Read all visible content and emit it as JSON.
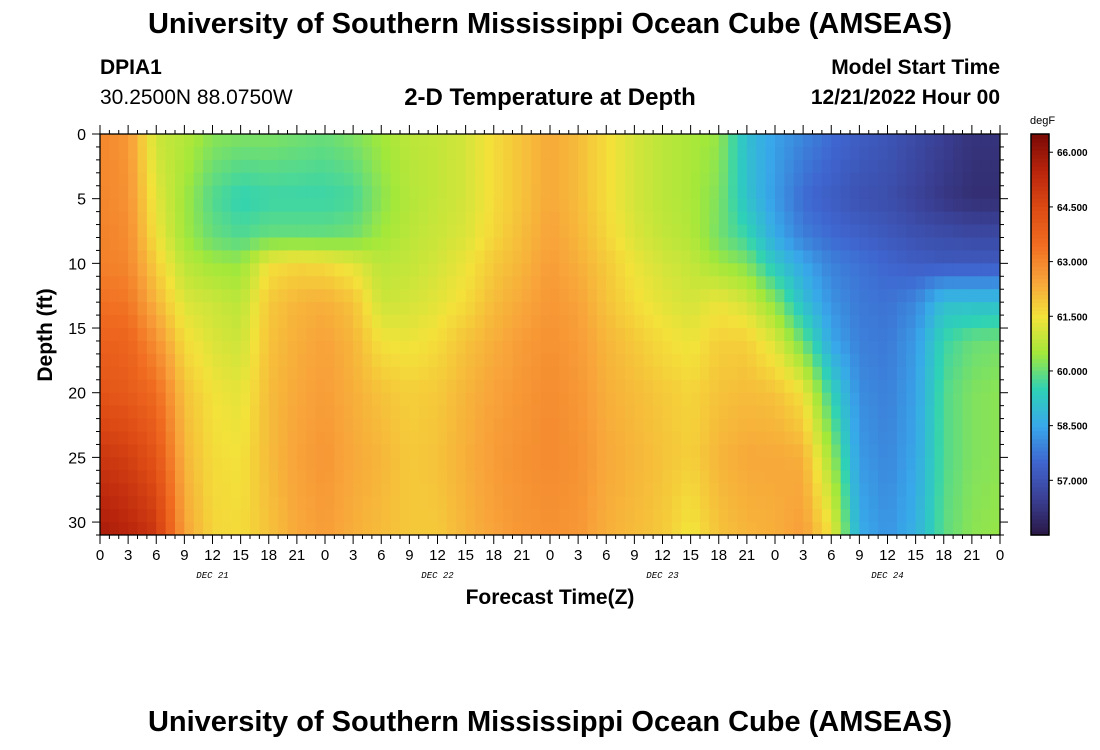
{
  "header": {
    "title": "University of Southern Mississippi Ocean Cube (AMSEAS)",
    "station_name": "DPIA1",
    "station_coords": "30.2500N  88.0750W",
    "chart_title": "2-D Temperature at Depth",
    "model_start_label": "Model Start Time",
    "model_start_value": "12/21/2022 Hour 00"
  },
  "footer": {
    "title": "University of Southern Mississippi Ocean Cube (AMSEAS)"
  },
  "chart_data": {
    "type": "heatmap",
    "title": "2-D Temperature at Depth",
    "xlabel": "Forecast Time(Z)",
    "ylabel": "Depth (ft)",
    "x_range_hours": [
      0,
      96
    ],
    "x_step_hours": 3,
    "x_tick_labels": [
      "0",
      "3",
      "6",
      "9",
      "12",
      "15",
      "18",
      "21",
      "0",
      "3",
      "6",
      "9",
      "12",
      "15",
      "18",
      "21",
      "0",
      "3",
      "6",
      "9",
      "12",
      "15",
      "18",
      "21",
      "0",
      "3",
      "6",
      "9",
      "12",
      "15",
      "18",
      "21",
      "0"
    ],
    "day_labels": [
      {
        "label": "DEC 21",
        "hour": 12
      },
      {
        "label": "DEC 22",
        "hour": 36
      },
      {
        "label": "DEC 23",
        "hour": 60
      },
      {
        "label": "DEC 24",
        "hour": 84
      }
    ],
    "y_range_ft": [
      0,
      31
    ],
    "y_ticks": [
      0,
      5,
      10,
      15,
      20,
      25,
      30
    ],
    "colorbar": {
      "unit": "degF",
      "range": [
        55.5,
        66.5
      ],
      "ticks": [
        66.0,
        64.5,
        63.0,
        61.5,
        60.0,
        58.5,
        57.0
      ],
      "tick_labels": [
        "66.000",
        "64.500",
        "63.000",
        "61.500",
        "60.000",
        "58.500",
        "57.000"
      ],
      "color_stops": [
        "#2a1744",
        "#3a3f93",
        "#3f65cf",
        "#38a8ea",
        "#2ed2b6",
        "#a3e83a",
        "#f3e23a",
        "#f8a23a",
        "#f06b20",
        "#dd4a14",
        "#b8240c",
        "#7a0a06"
      ]
    },
    "time_nodes_hours": [
      0,
      3,
      6,
      9,
      12,
      15,
      18,
      21,
      24,
      27,
      30,
      33,
      36,
      39,
      42,
      45,
      48,
      51,
      54,
      57,
      60,
      63,
      66,
      69,
      72,
      75,
      78,
      81,
      84,
      87,
      90,
      93,
      96
    ],
    "depth_nodes_ft": [
      0,
      5,
      8,
      10,
      13,
      16,
      20,
      25,
      31
    ],
    "temperature_degF": [
      [
        63.0,
        63.0,
        63.1,
        63.1,
        63.4,
        63.8,
        64.2,
        65.0,
        65.8
      ],
      [
        62.7,
        62.8,
        62.9,
        63.0,
        63.3,
        63.7,
        64.0,
        64.8,
        65.5
      ],
      [
        61.0,
        61.3,
        61.5,
        61.8,
        62.2,
        62.8,
        63.5,
        64.2,
        65.0
      ],
      [
        60.7,
        60.5,
        60.5,
        60.8,
        61.2,
        61.6,
        62.0,
        62.2,
        62.5
      ],
      [
        60.3,
        59.8,
        60.0,
        60.5,
        61.0,
        61.2,
        61.5,
        61.6,
        61.7
      ],
      [
        60.2,
        59.5,
        59.8,
        60.4,
        60.8,
        61.0,
        61.3,
        61.5,
        61.6
      ],
      [
        60.2,
        59.6,
        60.0,
        61.5,
        61.9,
        62.0,
        62.1,
        62.1,
        62.0
      ],
      [
        60.1,
        59.6,
        60.0,
        61.7,
        62.2,
        62.3,
        62.4,
        62.5,
        62.4
      ],
      [
        60.0,
        59.6,
        60.0,
        61.6,
        62.3,
        62.5,
        62.6,
        62.7,
        62.6
      ],
      [
        60.2,
        59.7,
        60.1,
        61.3,
        62.0,
        62.2,
        62.3,
        62.4,
        62.3
      ],
      [
        60.5,
        60.3,
        60.5,
        60.8,
        61.0,
        61.5,
        62.0,
        62.2,
        62.1
      ],
      [
        60.8,
        60.7,
        60.8,
        60.9,
        61.1,
        61.4,
        61.8,
        61.9,
        61.9
      ],
      [
        60.9,
        60.9,
        61.0,
        61.1,
        61.3,
        61.6,
        61.9,
        62.0,
        61.9
      ],
      [
        61.1,
        61.1,
        61.2,
        61.4,
        61.6,
        62.0,
        62.2,
        62.3,
        62.2
      ],
      [
        61.6,
        61.6,
        61.7,
        61.9,
        62.1,
        62.3,
        62.5,
        62.6,
        62.5
      ],
      [
        62.0,
        62.0,
        62.1,
        62.2,
        62.4,
        62.6,
        62.7,
        62.8,
        62.7
      ],
      [
        62.4,
        62.4,
        62.5,
        62.6,
        62.7,
        62.8,
        62.9,
        62.9,
        62.8
      ],
      [
        62.1,
        62.1,
        62.2,
        62.3,
        62.5,
        62.6,
        62.7,
        62.8,
        62.7
      ],
      [
        61.6,
        61.6,
        61.7,
        61.9,
        62.0,
        62.2,
        62.3,
        62.4,
        62.3
      ],
      [
        61.1,
        61.1,
        61.2,
        61.4,
        61.6,
        61.9,
        62.1,
        62.2,
        62.1
      ],
      [
        60.8,
        60.8,
        60.9,
        61.1,
        61.3,
        61.6,
        61.9,
        62.0,
        61.9
      ],
      [
        60.6,
        60.6,
        60.7,
        60.9,
        61.1,
        61.4,
        61.7,
        61.8,
        61.4
      ],
      [
        60.4,
        60.2,
        60.1,
        60.5,
        61.4,
        61.8,
        62.0,
        62.2,
        62.0
      ],
      [
        59.0,
        59.1,
        59.6,
        60.2,
        61.1,
        61.8,
        62.1,
        62.4,
        62.2
      ],
      [
        58.4,
        58.3,
        58.6,
        59.2,
        60.3,
        61.2,
        62.0,
        62.4,
        62.3
      ],
      [
        58.0,
        57.6,
        57.9,
        58.5,
        59.0,
        60.0,
        61.5,
        62.3,
        62.6
      ],
      [
        57.6,
        57.3,
        57.6,
        57.9,
        58.2,
        58.5,
        59.5,
        60.5,
        61.5
      ],
      [
        57.3,
        57.0,
        57.4,
        57.7,
        57.8,
        57.9,
        58.1,
        58.3,
        58.6
      ],
      [
        57.1,
        56.9,
        57.2,
        57.5,
        57.7,
        57.8,
        57.9,
        58.0,
        58.2
      ],
      [
        56.8,
        56.6,
        57.0,
        57.3,
        58.0,
        58.3,
        58.4,
        58.5,
        58.7
      ],
      [
        56.5,
        56.3,
        56.9,
        57.2,
        59.0,
        59.6,
        59.8,
        59.8,
        59.9
      ],
      [
        56.2,
        56.1,
        56.8,
        57.2,
        59.0,
        60.0,
        60.2,
        60.2,
        60.3
      ],
      [
        56.2,
        56.1,
        56.8,
        57.2,
        59.0,
        60.1,
        60.3,
        60.3,
        60.4
      ]
    ]
  }
}
